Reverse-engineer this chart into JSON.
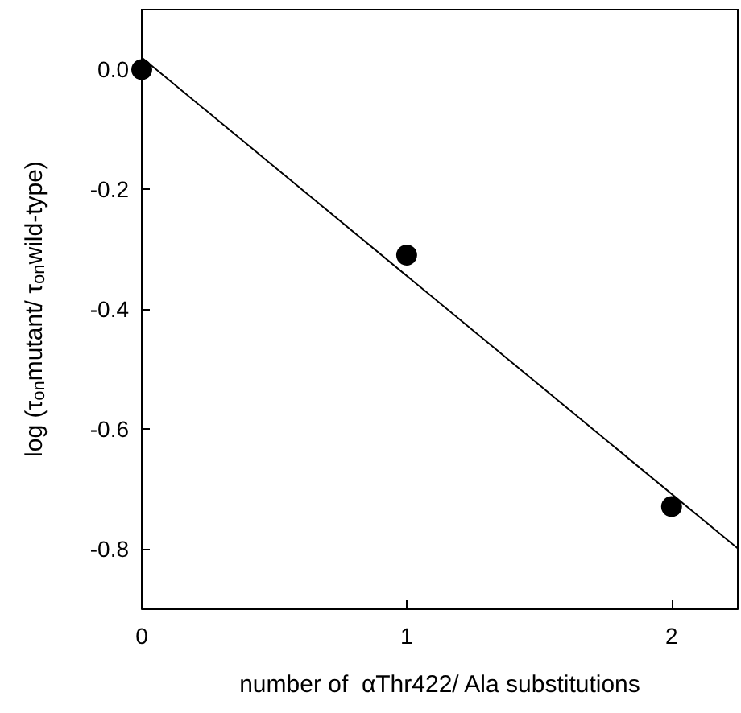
{
  "chart_data": {
    "type": "scatter",
    "xlabel": "number of  αThr422/ Ala substitutions",
    "ylabel": "log (τ$_{on}$mutant/ τ$_{on}$wild-type)",
    "xlim": [
      0,
      2.25
    ],
    "xticks": [
      0,
      1,
      2
    ],
    "ylim": [
      -0.9,
      0.1
    ],
    "yticks": [
      {
        "value": 0,
        "label": "0.0"
      },
      -0.2,
      -0.4,
      -0.6,
      -0.8
    ],
    "grid": false,
    "series": [
      {
        "x": [
          0,
          1,
          2
        ],
        "values": [
          0,
          -0.31,
          -0.73
        ],
        "color": "#000000",
        "marker": "circle"
      },
      {
        "type": "line",
        "x": [
          0,
          2.25
        ],
        "values": [
          0.02,
          -0.8
        ],
        "color": "#000000",
        "marker": "none",
        "line_style": "solid"
      }
    ]
  }
}
